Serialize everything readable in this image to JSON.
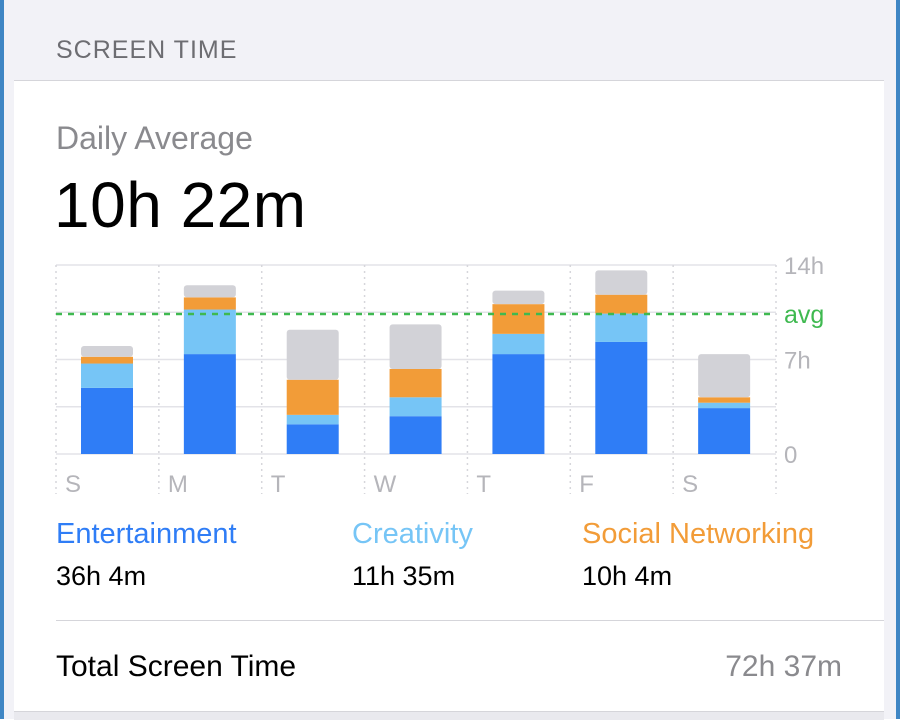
{
  "header": {
    "title": "SCREEN TIME"
  },
  "summary": {
    "daily_label": "Daily Average",
    "daily_value": "10h 22m"
  },
  "colors": {
    "entertainment": "#2f7df6",
    "creativity": "#76c5f6",
    "social": "#f29c38",
    "other": "#d2d2d7",
    "avg_line": "#3fb950"
  },
  "legend": [
    {
      "name": "Entertainment",
      "time": "36h 4m",
      "color": "#2f7df6"
    },
    {
      "name": "Creativity",
      "time": "11h 35m",
      "color": "#76c5f6"
    },
    {
      "name": "Social Networking",
      "time": "10h 4m",
      "color": "#f29c38"
    }
  ],
  "total": {
    "label": "Total Screen Time",
    "value": "72h 37m"
  },
  "chart_data": {
    "type": "bar",
    "stacked": true,
    "categories": [
      "S",
      "M",
      "T",
      "W",
      "T",
      "F",
      "S"
    ],
    "y_tick_labels": [
      "14h",
      "7h",
      "0"
    ],
    "avg_label": "avg",
    "ylim": [
      0,
      14
    ],
    "average": 10.37,
    "series": [
      {
        "name": "Entertainment",
        "values": [
          4.9,
          7.4,
          2.2,
          2.8,
          7.4,
          8.3,
          3.4
        ]
      },
      {
        "name": "Creativity",
        "values": [
          1.8,
          3.3,
          0.7,
          1.4,
          1.5,
          2.1,
          0.4
        ]
      },
      {
        "name": "Social Networking",
        "values": [
          0.5,
          0.9,
          2.6,
          2.1,
          2.2,
          1.4,
          0.4
        ]
      },
      {
        "series_role": "other",
        "values": [
          0.8,
          0.9,
          3.7,
          3.3,
          1.0,
          1.8,
          3.2
        ]
      }
    ]
  }
}
